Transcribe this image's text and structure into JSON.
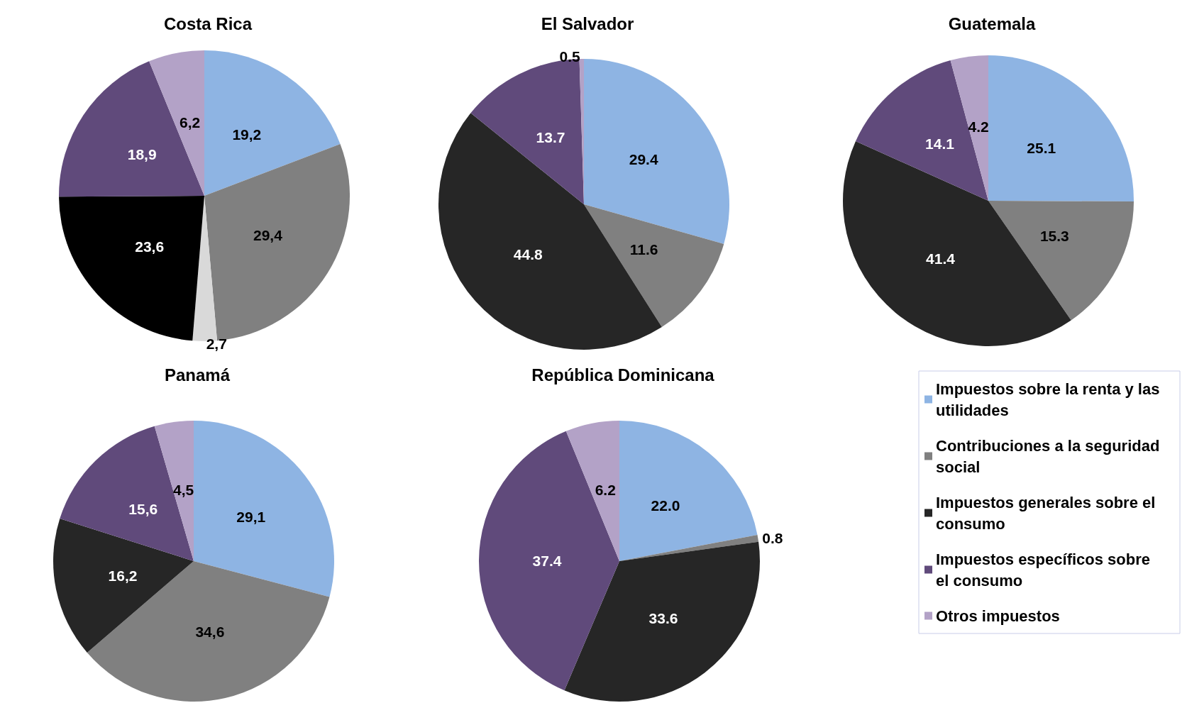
{
  "chart_data": [
    {
      "type": "pie",
      "title": "Costa Rica",
      "categories": [
        null,
        null,
        null,
        null,
        null,
        null
      ],
      "values": [
        19.2,
        29.4,
        2.7,
        23.6,
        18.9,
        6.2
      ],
      "value_labels": [
        "19,2",
        "29,4",
        "2,7",
        "23,6",
        "18,9",
        "6,2"
      ],
      "colors": [
        "#8eb4e3",
        "#808080",
        "#d9d9d9",
        "#000000",
        "#604a7b",
        "#b3a2c7"
      ],
      "legend": false
    },
    {
      "type": "pie",
      "title": "El Salvador",
      "categories": [
        null,
        null,
        null,
        null,
        null
      ],
      "values": [
        29.4,
        11.6,
        44.8,
        13.7,
        0.5
      ],
      "colors": [
        "#8eb4e3",
        "#808080",
        "#262626",
        "#604a7b",
        "#b3a2c7"
      ],
      "data_labels": true,
      "legend": false
    },
    {
      "type": "pie",
      "title": "Guatemala",
      "categories": [
        null,
        null,
        null,
        null,
        null
      ],
      "values": [
        25.1,
        15.3,
        41.4,
        14.1,
        4.2
      ],
      "colors": [
        "#8eb4e3",
        "#808080",
        "#262626",
        "#604a7b",
        "#b3a2c7"
      ],
      "data_labels": true,
      "legend": false
    },
    {
      "type": "pie",
      "title": "Panamá",
      "categories": [
        null,
        null,
        null,
        null,
        null
      ],
      "values": [
        29.1,
        34.6,
        16.2,
        15.6,
        4.5
      ],
      "value_labels": [
        "29,1",
        "34,6",
        "16,2",
        "15,6",
        "4,5"
      ],
      "colors": [
        "#8eb4e3",
        "#808080",
        "#262626",
        "#604a7b",
        "#b3a2c7"
      ],
      "legend": false
    },
    {
      "type": "pie",
      "title": "República Dominicana",
      "categories": [
        "Impuestos sobre la renta y las utilidades",
        "Contribuciones a la seguridad social",
        "Impuestos generales sobre el consumo",
        "Impuestos específicos sobre el consumo",
        "Otros impuestos"
      ],
      "values": [
        22.0,
        0.8,
        33.6,
        37.4,
        6.2
      ],
      "value_labels": [
        "22.0",
        "0.8",
        "33.6",
        "37.4",
        "6.2"
      ],
      "colors": [
        "#8eb4e3",
        "#808080",
        "#262626",
        "#604a7b",
        "#b3a2c7"
      ],
      "legend": "right"
    }
  ]
}
